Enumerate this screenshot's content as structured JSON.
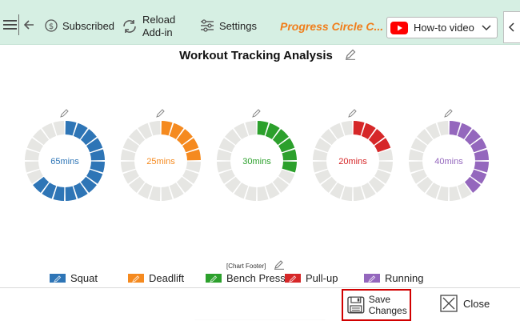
{
  "toolbar": {
    "subscribed_label": "Subscribed",
    "reload_label": "Reload Add-in",
    "settings_label": "Settings",
    "brand_label": "Progress Circle C...",
    "howto_label": "How-to video"
  },
  "chart_data": {
    "type": "progress-circle",
    "title": "Workout Tracking Analysis",
    "footer": "[Chart Footer]",
    "segments": 20,
    "track_color": "#e6e6e3",
    "series": [
      {
        "name": "Squat",
        "label": "65mins",
        "value": 65,
        "color": "#2e75b6"
      },
      {
        "name": "Deadlift",
        "label": "25mins",
        "value": 25,
        "color": "#f58a1f"
      },
      {
        "name": "Bench Press",
        "label": "30mins",
        "value": 30,
        "color": "#2ca02c"
      },
      {
        "name": "Pull-up",
        "label": "20mins",
        "value": 20,
        "color": "#d62728"
      },
      {
        "name": "Running",
        "label": "40mins",
        "value": 40,
        "color": "#9467bd"
      }
    ]
  },
  "actions": {
    "save_label": "Save Changes",
    "close_label": "Close"
  }
}
